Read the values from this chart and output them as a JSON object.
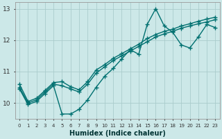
{
  "xlabel": "Humidex (Indice chaleur)",
  "xlim": [
    -0.5,
    23.5
  ],
  "ylim": [
    9.5,
    13.2
  ],
  "xticks": [
    0,
    1,
    2,
    3,
    4,
    5,
    6,
    7,
    8,
    9,
    10,
    11,
    12,
    13,
    14,
    15,
    16,
    17,
    18,
    19,
    20,
    21,
    22,
    23
  ],
  "yticks": [
    10,
    11,
    12,
    13
  ],
  "bg_color": "#cce8e8",
  "grid_color": "#aacccc",
  "line_color": "#007070",
  "line1_y": [
    10.45,
    9.95,
    10.05,
    10.3,
    10.55,
    9.65,
    9.65,
    9.8,
    10.1,
    10.5,
    10.85,
    11.1,
    11.4,
    11.7,
    11.55,
    12.5,
    13.0,
    12.45,
    12.25,
    11.85,
    11.75,
    12.1,
    12.5,
    12.4
  ],
  "line2_y": [
    10.5,
    10.0,
    10.1,
    10.35,
    10.6,
    10.55,
    10.45,
    10.35,
    10.6,
    10.95,
    11.15,
    11.35,
    11.5,
    11.65,
    11.8,
    11.95,
    12.1,
    12.2,
    12.28,
    12.38,
    12.45,
    12.52,
    12.58,
    12.65
  ],
  "line3_y": [
    10.6,
    10.05,
    10.15,
    10.4,
    10.65,
    10.68,
    10.52,
    10.42,
    10.68,
    11.05,
    11.22,
    11.42,
    11.57,
    11.72,
    11.87,
    12.05,
    12.18,
    12.28,
    12.35,
    12.45,
    12.52,
    12.6,
    12.67,
    12.73
  ],
  "marker": "+",
  "markersize": 4,
  "linewidth": 1.0
}
